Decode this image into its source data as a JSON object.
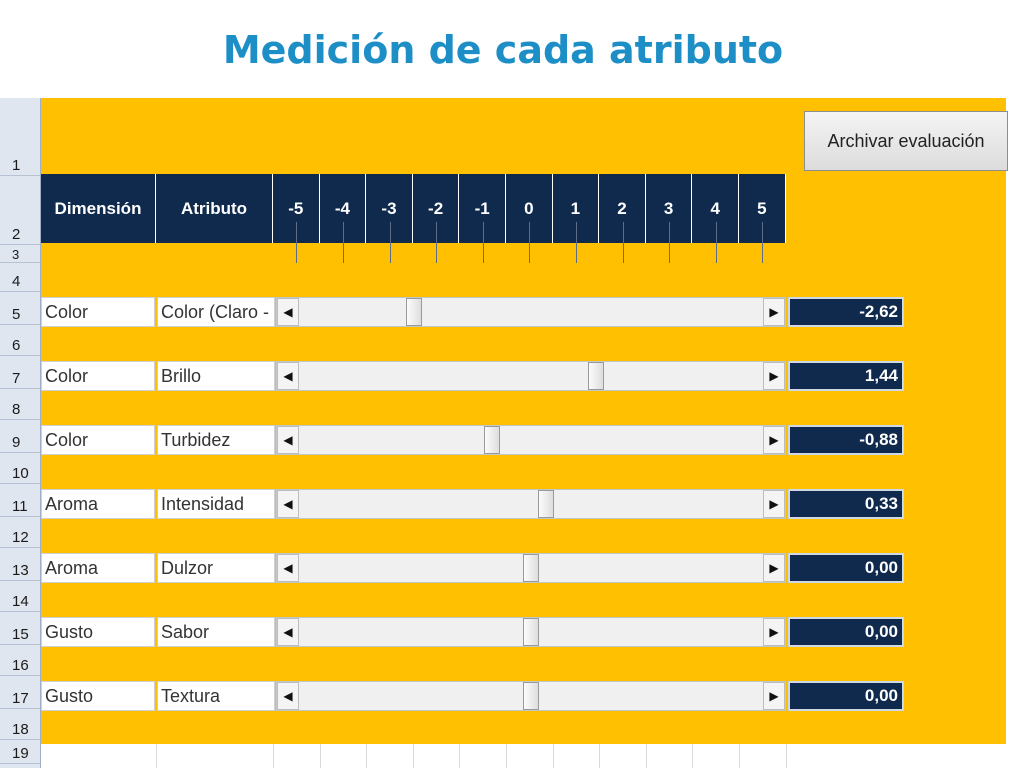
{
  "title": "Medición de cada atributo",
  "archive_button_label": "Archivar evaluación",
  "header": {
    "dimension": "Dimensión",
    "attribute": "Atributo",
    "scale": [
      "-5",
      "-4",
      "-3",
      "-2",
      "-1",
      "0",
      "1",
      "2",
      "3",
      "4",
      "5"
    ]
  },
  "row_numbers": [
    "1",
    "2",
    "3",
    "4",
    "5",
    "6",
    "7",
    "8",
    "9",
    "10",
    "11",
    "12",
    "13",
    "14",
    "15",
    "16",
    "17",
    "18",
    "19"
  ],
  "scroll_arrows": {
    "left": "◀",
    "right": "▶"
  },
  "rows": [
    {
      "dimension": "Color",
      "attribute": "Color (Claro - Os",
      "value": -2.62,
      "value_label": "-2,62"
    },
    {
      "dimension": "Color",
      "attribute": "Brillo",
      "value": 1.44,
      "value_label": "1,44"
    },
    {
      "dimension": "Color",
      "attribute": "Turbidez",
      "value": -0.88,
      "value_label": "-0,88"
    },
    {
      "dimension": "Aroma",
      "attribute": "Intensidad",
      "value": 0.33,
      "value_label": "0,33"
    },
    {
      "dimension": "Aroma",
      "attribute": "Dulzor",
      "value": 0.0,
      "value_label": "0,00"
    },
    {
      "dimension": "Gusto",
      "attribute": "Sabor",
      "value": 0.0,
      "value_label": "0,00"
    },
    {
      "dimension": "Gusto",
      "attribute": "Textura",
      "value": 0.0,
      "value_label": "0,00"
    }
  ],
  "colors": {
    "title": "#1d8fc6",
    "sheet_fill": "#fec000",
    "header_fill": "#0f2a4c",
    "value_fill": "#0f2a4c"
  }
}
